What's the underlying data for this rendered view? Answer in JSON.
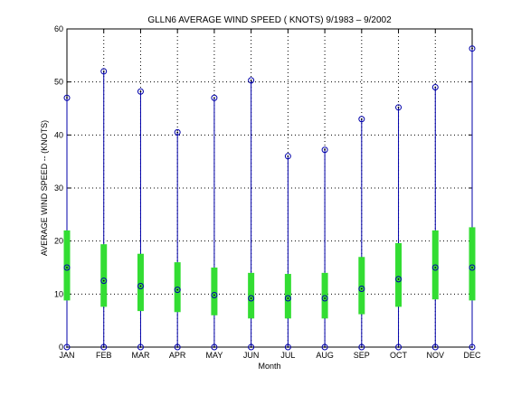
{
  "chart_data": {
    "type": "box",
    "title": "GLLN6  AVERAGE WIND SPEED ( KNOTS) 9/1983 – 9/2002",
    "xlabel": "Month",
    "ylabel": "AVERAGE WIND SPEED -- (KNOTS)",
    "ylim": [
      0,
      60
    ],
    "yticks": [
      0,
      10,
      20,
      30,
      40,
      50,
      60
    ],
    "grid": true,
    "categories": [
      "JAN",
      "FEB",
      "MAR",
      "APR",
      "MAY",
      "JUN",
      "JUL",
      "AUG",
      "SEP",
      "OCT",
      "NOV",
      "DEC"
    ],
    "series": [
      {
        "min": [
          0,
          0,
          0,
          0,
          0,
          0,
          0,
          0,
          0,
          0,
          0,
          0
        ],
        "q1": [
          8.8,
          7.6,
          6.8,
          6.6,
          6.0,
          5.4,
          5.4,
          5.4,
          6.2,
          7.6,
          9.0,
          8.8
        ],
        "median": [
          15.0,
          12.5,
          11.5,
          10.8,
          9.8,
          9.2,
          9.2,
          9.2,
          11.0,
          12.8,
          15.0,
          15.0
        ],
        "q3": [
          22.0,
          19.4,
          17.6,
          16.0,
          15.0,
          14.0,
          13.8,
          14.0,
          17.0,
          19.6,
          22.0,
          22.6
        ],
        "max": [
          47.0,
          52.0,
          48.2,
          40.5,
          47.0,
          50.3,
          36.0,
          37.2,
          43.0,
          45.2,
          49.0,
          56.3
        ]
      }
    ],
    "colors": {
      "whisker": "#0000aa",
      "box": "#33dd33",
      "marker": "#0000aa",
      "grid": "#000000",
      "axis": "#000000"
    }
  }
}
